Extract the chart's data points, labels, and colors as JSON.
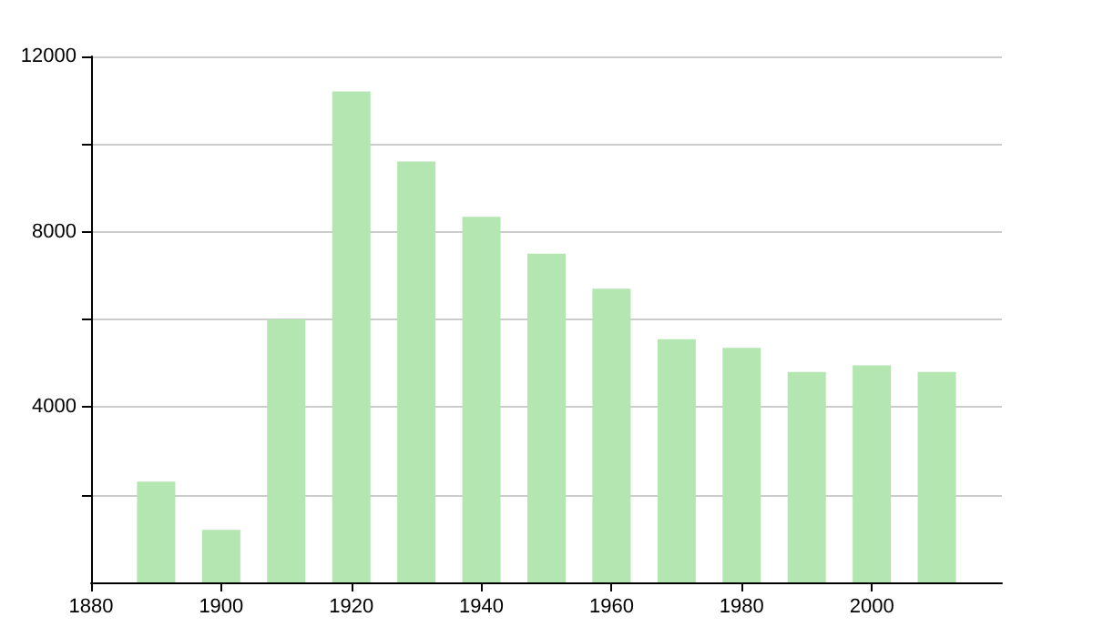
{
  "chart_data": {
    "type": "bar",
    "x": [
      1890,
      1900,
      1910,
      1920,
      1930,
      1940,
      1950,
      1960,
      1970,
      1980,
      1990,
      2000,
      2010
    ],
    "values": [
      2300,
      1200,
      6000,
      11200,
      9600,
      8340,
      7500,
      6700,
      5550,
      5350,
      4800,
      4950,
      4800
    ],
    "color": "#b3e6b0",
    "xlim": [
      1880,
      2020
    ],
    "xticks": [
      1880,
      1900,
      1920,
      1940,
      1960,
      1980,
      2000
    ],
    "ylim": [
      0,
      12000
    ],
    "yticks": [
      {
        "value": 2000,
        "label": null
      },
      4000,
      {
        "value": 6000,
        "label": null
      },
      8000,
      {
        "value": 10000,
        "label": null
      },
      12000
    ],
    "grid": "y"
  }
}
